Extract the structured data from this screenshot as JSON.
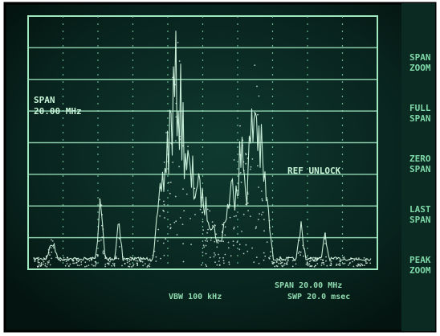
{
  "screen": {
    "span_label": "SPAN",
    "span_value": "20.00 MHz",
    "status": "REF UNLOCK",
    "softkeys": [
      [
        "SPAN",
        "ZOOM"
      ],
      [
        "FULL",
        "SPAN"
      ],
      [
        "ZERO",
        "SPAN"
      ],
      [
        "LAST",
        "SPAN"
      ],
      [
        "PEAK",
        "ZOOM"
      ]
    ],
    "footer": {
      "center": "VBW 100 kHz",
      "span": "SPAN 20.00 MHz",
      "sweep": "SWP 20.0 msec"
    }
  }
}
